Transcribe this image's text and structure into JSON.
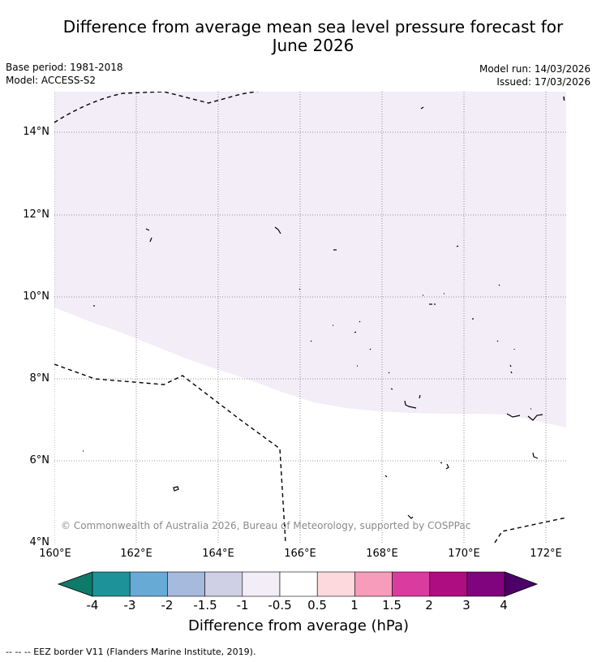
{
  "header": {
    "title_line1": "Difference from average mean sea level pressure forecast for",
    "title_line2": "June 2026",
    "base_period": "Base period: 1981-2018",
    "model": "Model: ACCESS-S2",
    "model_run": "Model run: 14/03/2026",
    "issued": "Issued: 17/03/2026"
  },
  "map": {
    "lat_labels": [
      "14°N",
      "12°N",
      "10°N",
      "8°N",
      "6°N",
      "4°N"
    ],
    "lon_labels": [
      "160°E",
      "162°E",
      "164°E",
      "166°E",
      "168°E",
      "170°E",
      "172°E"
    ],
    "shaded_category": "-1 to -0.5 hPa",
    "colors": {
      "shading": "#f3edf7",
      "background": "#ffffff",
      "grid": "#777777",
      "border": "#000000"
    },
    "copyright": "© Commonwealth of Australia 2026, Bureau of Meteorology, supported by COSPPac"
  },
  "colorbar": {
    "tick_labels": [
      "-4",
      "-3",
      "-2",
      "-1.5",
      "-1",
      "-0.5",
      "0.5",
      "1",
      "1.5",
      "2",
      "3",
      "4"
    ],
    "colors": [
      "#0f7a6a",
      "#1e9299",
      "#67aad6",
      "#a6badd",
      "#cfcfe6",
      "#f3edf7",
      "#ffffff",
      "#fdd9dd",
      "#f79cba",
      "#d93b9f",
      "#ad0d80",
      "#7f047d",
      "#4c0068"
    ],
    "title": "Difference from average (hPa)"
  },
  "legend": {
    "text": "--  --  -- EEZ border V11 (Flanders Marine Institute, 2019)."
  }
}
